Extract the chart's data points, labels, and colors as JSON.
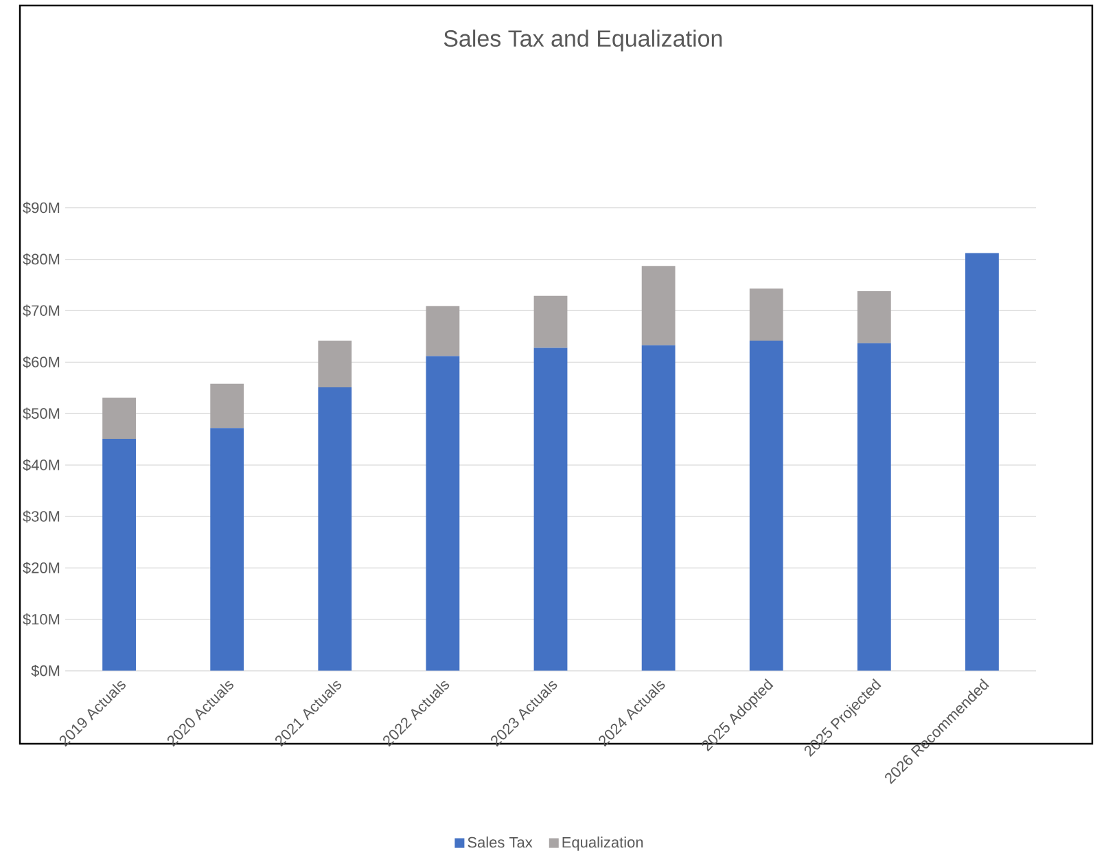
{
  "chart_data": {
    "type": "bar",
    "title": "Sales Tax and Equalization",
    "stacked": true,
    "grid": "y",
    "legend": "bottom",
    "categories": [
      "2019 Actuals",
      "2020 Actuals",
      "2021 Actuals",
      "2022 Actuals",
      "2023 Actuals",
      "2024 Actuals",
      "2025 Adopted",
      "2025 Projected",
      "2026 Recommended"
    ],
    "series": [
      {
        "name": "Sales Tax",
        "color": "#4472c4",
        "values": [
          45.1,
          47.2,
          55.1,
          61.2,
          62.8,
          63.3,
          64.2,
          63.7,
          81.2
        ]
      },
      {
        "name": "Equalization",
        "color": "#a9a5a5",
        "values": [
          8.0,
          8.6,
          9.1,
          9.7,
          10.1,
          15.4,
          10.1,
          10.1,
          null
        ]
      }
    ],
    "ylim": [
      0,
      90
    ],
    "yticks": [
      {
        "value": 0,
        "label": "$0M"
      },
      {
        "value": 10,
        "label": "$10M"
      },
      {
        "value": 20,
        "label": "$20M"
      },
      {
        "value": 30,
        "label": "$30M"
      },
      {
        "value": 40,
        "label": "$40M"
      },
      {
        "value": 50,
        "label": "$50M"
      },
      {
        "value": 60,
        "label": "$60M"
      },
      {
        "value": 70,
        "label": "$70M"
      },
      {
        "value": 80,
        "label": "$80M"
      },
      {
        "value": 90,
        "label": "$90M"
      }
    ]
  }
}
